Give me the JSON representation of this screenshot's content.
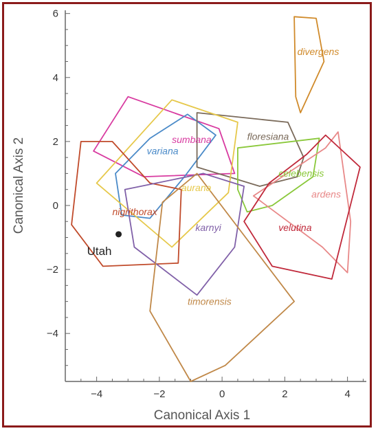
{
  "chart_data": {
    "type": "scatter",
    "title": "",
    "xlabel": "Canonical Axis 1",
    "ylabel": "Canonical Axis 2",
    "xlim": [
      -5,
      4.6
    ],
    "ylim": [
      -5.5,
      6.1
    ],
    "xticks": [
      -4,
      -2,
      0,
      2,
      4
    ],
    "yticks": [
      -4,
      -2,
      0,
      2,
      4,
      6
    ],
    "xtick_labels": [
      "−4",
      "−2",
      "0",
      "2",
      "4"
    ],
    "ytick_labels": [
      "−4",
      "−2",
      "0",
      "2",
      "4",
      "6"
    ],
    "grid": false,
    "series": [
      {
        "name": "divergens",
        "color": "#d08a2a",
        "label_at": [
          2.4,
          4.7
        ],
        "hull": [
          [
            2.3,
            5.9
          ],
          [
            3.0,
            5.85
          ],
          [
            3.25,
            4.5
          ],
          [
            2.5,
            2.9
          ],
          [
            2.35,
            3.4
          ]
        ]
      },
      {
        "name": "sumbana",
        "color": "#d83aa0",
        "label_at": [
          -1.6,
          1.95
        ],
        "hull": [
          [
            -4.1,
            1.7
          ],
          [
            -3.0,
            3.4
          ],
          [
            -0.1,
            2.4
          ],
          [
            0.4,
            1.0
          ],
          [
            -2.5,
            0.9
          ]
        ]
      },
      {
        "name": "variana",
        "color": "#4a8ac8",
        "label_at": [
          -2.4,
          1.6
        ],
        "hull": [
          [
            -3.4,
            1.0
          ],
          [
            -2.3,
            2.1
          ],
          [
            -1.1,
            2.85
          ],
          [
            -0.2,
            2.2
          ],
          [
            -1.2,
            0.9
          ],
          [
            -2.3,
            -0.4
          ],
          [
            -3.2,
            -0.3
          ]
        ]
      },
      {
        "name": "floresiana",
        "color": "#7a6a5a",
        "label_at": [
          0.8,
          2.05
        ],
        "hull": [
          [
            -0.8,
            2.9
          ],
          [
            2.1,
            2.6
          ],
          [
            2.6,
            1.5
          ],
          [
            2.4,
            0.9
          ],
          [
            1.2,
            0.6
          ],
          [
            -0.8,
            1.2
          ]
        ]
      },
      {
        "name": "aurana",
        "color": "#e6c84a",
        "label_at": [
          -1.3,
          0.45
        ],
        "hull": [
          [
            -4.0,
            0.7
          ],
          [
            -1.6,
            3.3
          ],
          [
            0.5,
            2.6
          ],
          [
            0.2,
            0.4
          ],
          [
            -1.6,
            -1.3
          ]
        ]
      },
      {
        "name": "celebensis",
        "color": "#8ac83a",
        "label_at": [
          1.8,
          0.9
        ],
        "hull": [
          [
            0.5,
            1.8
          ],
          [
            3.1,
            2.1
          ],
          [
            2.9,
            0.9
          ],
          [
            1.6,
            0.0
          ],
          [
            0.8,
            -0.2
          ],
          [
            0.5,
            0.5
          ]
        ]
      },
      {
        "name": "ardens",
        "color": "#e88888",
        "label_at": [
          2.85,
          0.25
        ],
        "hull": [
          [
            1.0,
            0.3
          ],
          [
            3.3,
            1.8
          ],
          [
            3.7,
            2.3
          ],
          [
            4.1,
            -0.5
          ],
          [
            4.0,
            -2.1
          ],
          [
            3.2,
            -1.3
          ]
        ]
      },
      {
        "name": "nigrithorax",
        "color": "#c04a2a",
        "label_at": [
          -3.5,
          -0.3
        ],
        "hull": [
          [
            -4.5,
            2.0
          ],
          [
            -3.5,
            2.0
          ],
          [
            -2.3,
            0.7
          ],
          [
            -1.3,
            0.5
          ],
          [
            -1.4,
            -1.8
          ],
          [
            -3.8,
            -1.9
          ],
          [
            -4.8,
            -0.6
          ]
        ]
      },
      {
        "name": "karnyi",
        "color": "#8060a8",
        "label_at": [
          -0.85,
          -0.8
        ],
        "hull": [
          [
            -3.1,
            0.5
          ],
          [
            -0.6,
            1.0
          ],
          [
            0.7,
            0.6
          ],
          [
            0.4,
            -1.3
          ],
          [
            -0.8,
            -2.8
          ],
          [
            -2.8,
            -1.3
          ]
        ]
      },
      {
        "name": "velutina",
        "color": "#c0283a",
        "label_at": [
          1.8,
          -0.8
        ],
        "hull": [
          [
            1.5,
            0.7
          ],
          [
            2.7,
            1.6
          ],
          [
            3.3,
            2.2
          ],
          [
            4.4,
            1.2
          ],
          [
            3.5,
            -2.3
          ],
          [
            1.6,
            -1.9
          ],
          [
            0.7,
            -0.5
          ]
        ]
      },
      {
        "name": "timorensis",
        "color": "#c08848",
        "label_at": [
          -1.1,
          -3.1
        ],
        "hull": [
          [
            -1.9,
            0.1
          ],
          [
            -0.8,
            1.0
          ],
          [
            2.3,
            -3.0
          ],
          [
            0.1,
            -5.0
          ],
          [
            -1.0,
            -5.5
          ],
          [
            -2.3,
            -3.3
          ]
        ]
      }
    ],
    "points": [
      {
        "name": "Utah",
        "x": -3.3,
        "y": -0.9,
        "color": "#222222"
      }
    ]
  }
}
